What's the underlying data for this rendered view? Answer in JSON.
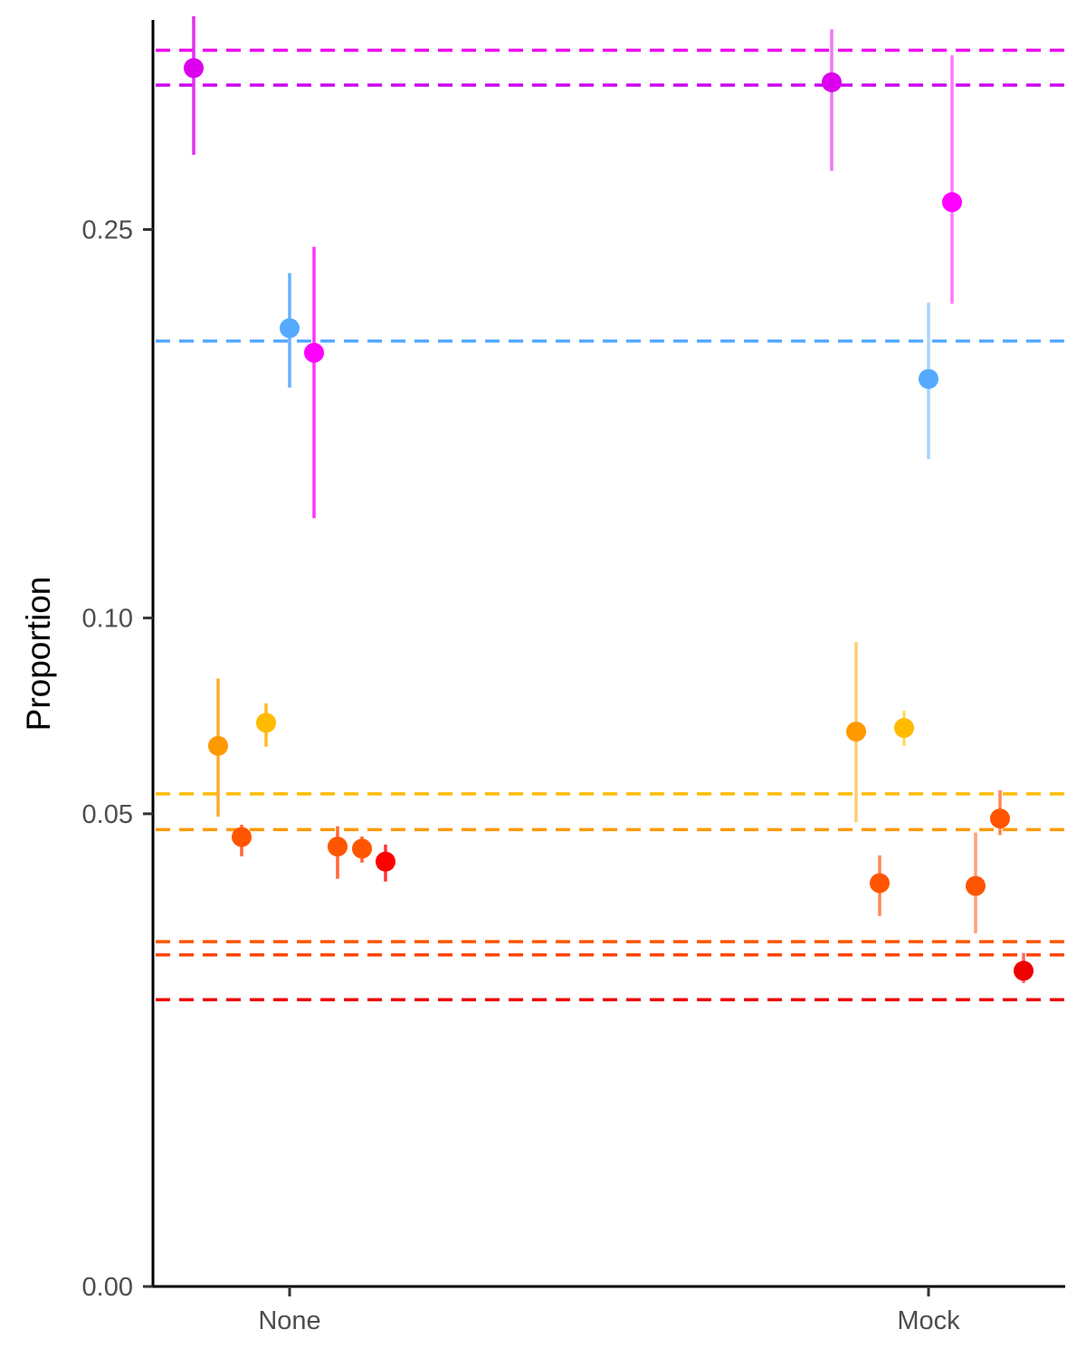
{
  "chart_data": {
    "type": "scatter",
    "title": "",
    "xlabel": "",
    "ylabel": "Proportion",
    "y_scale": "sqrt",
    "ylim": [
      0,
      0.36
    ],
    "y_ticks": [
      {
        "value": 0.0,
        "label": "0.00"
      },
      {
        "value": 0.05,
        "label": "0.05"
      },
      {
        "value": 0.1,
        "label": "0.10"
      },
      {
        "value": 0.25,
        "label": "0.25"
      }
    ],
    "categories": [
      "None",
      "Mock"
    ],
    "grid": false,
    "legend": "none",
    "reference_lines": [
      {
        "y": 0.342,
        "color": "#ee00ee"
      },
      {
        "y": 0.323,
        "color": "#cc00ee"
      },
      {
        "y": 0.2,
        "color": "#55aaff"
      },
      {
        "y": 0.0543,
        "color": "#ffbb00"
      },
      {
        "y": 0.0467,
        "color": "#ff9900"
      },
      {
        "y": 0.0266,
        "color": "#ff5500"
      },
      {
        "y": 0.0246,
        "color": "#ff4400"
      },
      {
        "y": 0.0184,
        "color": "#ee0000"
      }
    ],
    "points": [
      {
        "category": "None",
        "offset": -0.3,
        "y": 0.3322,
        "low": 0.2866,
        "high": 0.3611,
        "color": "#dd00ee",
        "bar_color": "#e030f0"
      },
      {
        "category": "None",
        "offset": -0.225,
        "y": 0.0654,
        "low": 0.0494,
        "high": 0.0827,
        "color": "#ff9900",
        "bar_color": "#ffaa33"
      },
      {
        "category": "None",
        "offset": -0.15,
        "y": 0.0452,
        "low": 0.0414,
        "high": 0.0477,
        "color": "#ff5500",
        "bar_color": "#ff6633"
      },
      {
        "category": "None",
        "offset": -0.075,
        "y": 0.0711,
        "low": 0.0652,
        "high": 0.0761,
        "color": "#ffbb00",
        "bar_color": "#ffbb22"
      },
      {
        "category": "None",
        "offset": 0.0,
        "y": 0.2055,
        "low": 0.1808,
        "high": 0.2298,
        "color": "#55aaff",
        "bar_color": "#66b0ff"
      },
      {
        "category": "None",
        "offset": 0.075,
        "y": 0.1951,
        "low": 0.1321,
        "high": 0.2419,
        "color": "#ff00ff",
        "bar_color": "#ff33ff"
      },
      {
        "category": "None",
        "offset": 0.15,
        "y": 0.0433,
        "low": 0.0372,
        "high": 0.0474,
        "color": "#ff5500",
        "bar_color": "#ff6633"
      },
      {
        "category": "None",
        "offset": 0.225,
        "y": 0.0429,
        "low": 0.0402,
        "high": 0.0453,
        "color": "#ff5500",
        "bar_color": "#ff6633"
      },
      {
        "category": "None",
        "offset": 0.3,
        "y": 0.0404,
        "low": 0.0367,
        "high": 0.0437,
        "color": "#ff0000",
        "bar_color": "#ff3333"
      },
      {
        "category": "Mock",
        "offset": -0.15,
        "y": 0.3245,
        "low": 0.2785,
        "high": 0.3537,
        "color": "#dd00ee",
        "bar_color": "#ee77f5"
      },
      {
        "category": "Mock",
        "offset": -0.075,
        "y": 0.0689,
        "low": 0.0482,
        "high": 0.0929,
        "color": "#ff9900",
        "bar_color": "#ffcc77"
      },
      {
        "category": "Mock",
        "offset": -0.0,
        "y": 0.0364,
        "low": 0.0307,
        "high": 0.0416,
        "color": "#ff5500",
        "bar_color": "#ff8855"
      },
      {
        "category": "Mock",
        "offset": 0.075,
        "y": 0.0698,
        "low": 0.0654,
        "high": 0.0742,
        "color": "#ffbb00",
        "bar_color": "#ffdd66"
      },
      {
        "category": "Mock",
        "offset": 0.0,
        "y": 0.1843,
        "low": 0.1532,
        "high": 0.2166,
        "color": "#55aaff",
        "bar_color": "#aad4ff"
      },
      {
        "category": "Mock",
        "offset": 0.0375,
        "y": 0.2631,
        "low": 0.2161,
        "high": 0.3392,
        "color": "#ff00ff",
        "bar_color": "#ff77ff"
      },
      {
        "category": "Mock",
        "offset": 0.075,
        "y": 0.0359,
        "low": 0.0279,
        "high": 0.0461,
        "color": "#ff5500",
        "bar_color": "#ffa07a"
      },
      {
        "category": "Mock",
        "offset": 0.1125,
        "y": 0.049,
        "low": 0.0456,
        "high": 0.0551,
        "color": "#ff5500",
        "bar_color": "#ff8855"
      },
      {
        "category": "Mock",
        "offset": 0.15,
        "y": 0.0223,
        "low": 0.0206,
        "high": 0.0249,
        "color": "#ee0000",
        "bar_color": "#ff6666"
      }
    ]
  }
}
